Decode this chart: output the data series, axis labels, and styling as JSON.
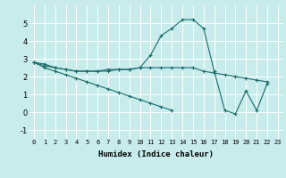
{
  "background_color": "#c8ecec",
  "grid_color": "#ffffff",
  "line_color": "#1a6b6b",
  "xlabel": "Humidex (Indice chaleur)",
  "ylim": [
    -1.5,
    6.0
  ],
  "xlim": [
    -0.5,
    23.5
  ],
  "yticks": [
    -1,
    0,
    1,
    2,
    3,
    4,
    5
  ],
  "xticks": [
    0,
    1,
    2,
    3,
    4,
    5,
    6,
    7,
    8,
    9,
    10,
    11,
    12,
    13,
    14,
    15,
    16,
    17,
    18,
    19,
    20,
    21,
    22,
    23
  ],
  "series": [
    [
      2.8,
      2.7,
      2.5,
      2.4,
      2.3,
      2.3,
      2.3,
      2.3,
      2.4,
      2.4,
      2.5,
      3.2,
      4.3,
      4.7,
      5.2,
      5.2,
      4.7,
      2.3,
      0.1,
      -0.1,
      1.2,
      0.1,
      1.6,
      null
    ],
    [
      2.8,
      2.6,
      2.5,
      2.4,
      2.3,
      2.3,
      2.3,
      2.4,
      2.4,
      2.4,
      2.5,
      2.5,
      2.5,
      2.5,
      2.5,
      2.5,
      2.3,
      2.2,
      2.1,
      2.0,
      1.9,
      1.8,
      1.7,
      null
    ],
    [
      2.8,
      2.5,
      2.3,
      2.1,
      1.9,
      1.7,
      1.5,
      1.3,
      1.1,
      0.9,
      0.7,
      0.5,
      0.3,
      0.1,
      null,
      null,
      null,
      null,
      null,
      null,
      null,
      null,
      null,
      null
    ]
  ],
  "marker": "+",
  "markersize": 3.0,
  "linewidth": 0.8,
  "tick_fontsize": 5.0,
  "xlabel_fontsize": 6.5
}
